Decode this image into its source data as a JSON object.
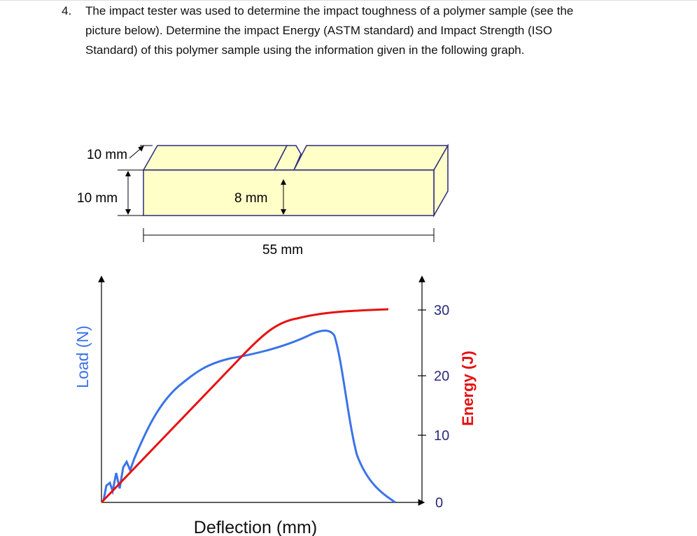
{
  "question": {
    "number": "4.",
    "lines": [
      "The impact tester was used to determine the impact toughness of a polymer sample (see the",
      "picture below). Determine the impact Energy (ASTM standard) and Impact Strength (ISO",
      "Standard) of this polymer sample using the information given in the following graph."
    ]
  },
  "specimen": {
    "width_label": "10 mm",
    "height_label": "10 mm",
    "notch_label": "8 mm",
    "length_label": "55 mm"
  },
  "graph": {
    "y_label": "Load (N)",
    "y2_label": "Energy (J)",
    "x_label": "Deflection (mm)",
    "energy_ticks": [
      "30",
      "20",
      "10",
      "0"
    ]
  }
}
